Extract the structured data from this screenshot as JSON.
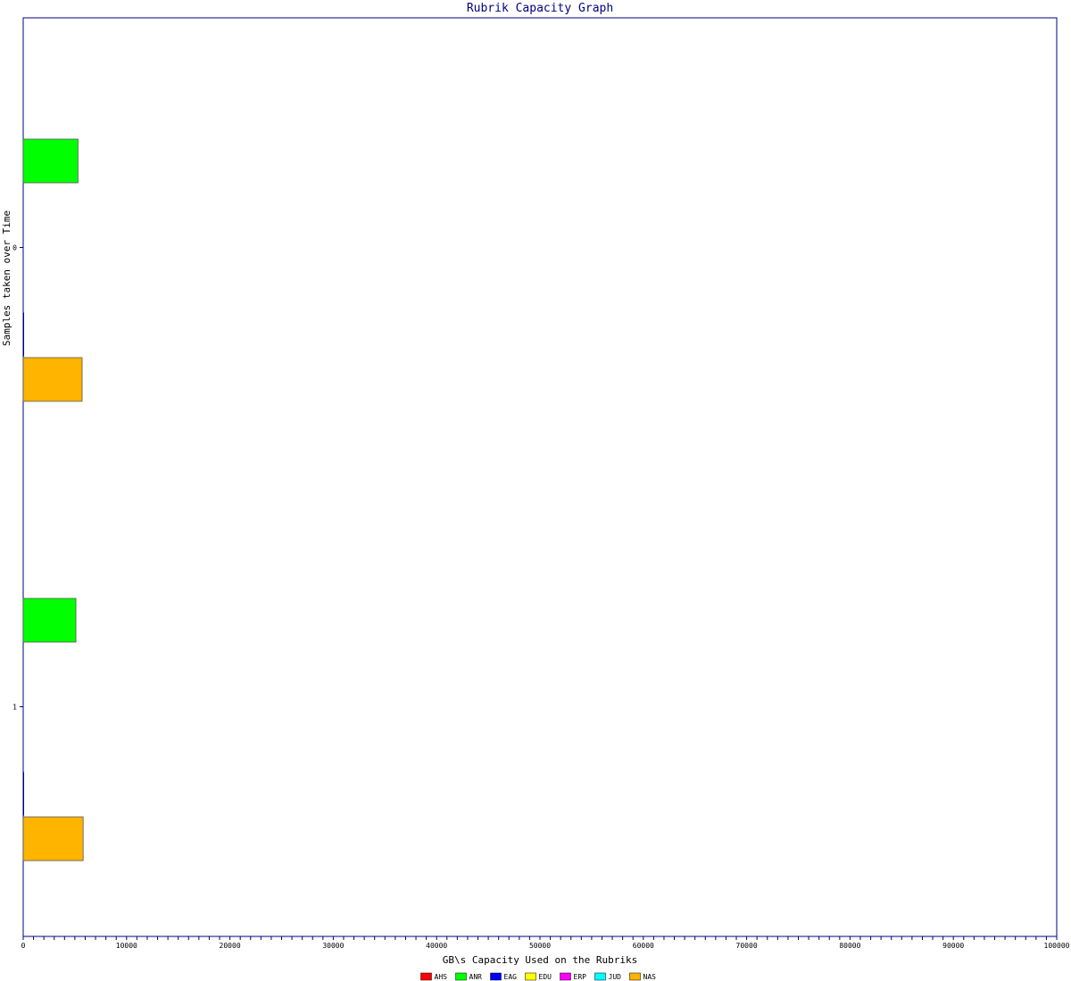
{
  "chart_data": {
    "type": "bar",
    "orientation": "horizontal",
    "title": "Rubrik Capacity Graph",
    "xlabel": "GB\\s Capacity Used on the Rubriks",
    "ylabel": "Samples taken over Time",
    "xlim": [
      0,
      100000
    ],
    "x_ticks": [
      "0",
      "10000",
      "20000",
      "30000",
      "40000",
      "50000",
      "60000",
      "70000",
      "80000",
      "90000",
      "100000"
    ],
    "categories": [
      "0",
      "1"
    ],
    "series": [
      {
        "name": "AHS",
        "color": "#ff0000",
        "values": [
          0,
          0
        ]
      },
      {
        "name": "ANR",
        "color": "#00ff00",
        "values": [
          5300,
          5100
        ]
      },
      {
        "name": "EAG",
        "color": "#0000ff",
        "values": [
          0,
          0
        ]
      },
      {
        "name": "EDU",
        "color": "#ffff00",
        "values": [
          0,
          0
        ]
      },
      {
        "name": "ERP",
        "color": "#ff00ff",
        "values": [
          0,
          0
        ]
      },
      {
        "name": "JUD",
        "color": "#00ffff",
        "values": [
          100,
          100
        ]
      },
      {
        "name": "NAS",
        "color": "#ffb400",
        "values": [
          5700,
          5800
        ]
      }
    ],
    "grid": false,
    "legend_position": "bottom"
  }
}
